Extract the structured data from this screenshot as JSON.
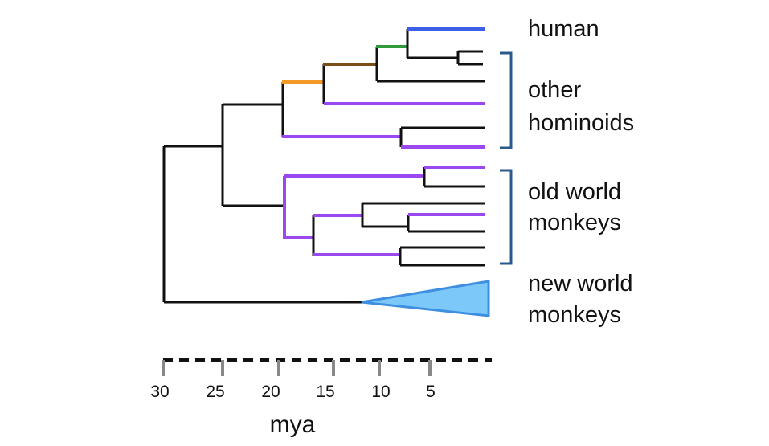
{
  "clades": [
    {
      "label": [
        "human"
      ]
    },
    {
      "label": [
        "other",
        "hominoids"
      ]
    },
    {
      "label": [
        "old world",
        "monkeys"
      ]
    },
    {
      "label": [
        "new world",
        "monkeys"
      ]
    }
  ],
  "axis": {
    "ticks": [
      30,
      25,
      20,
      15,
      10,
      5
    ],
    "label": "mya"
  }
}
